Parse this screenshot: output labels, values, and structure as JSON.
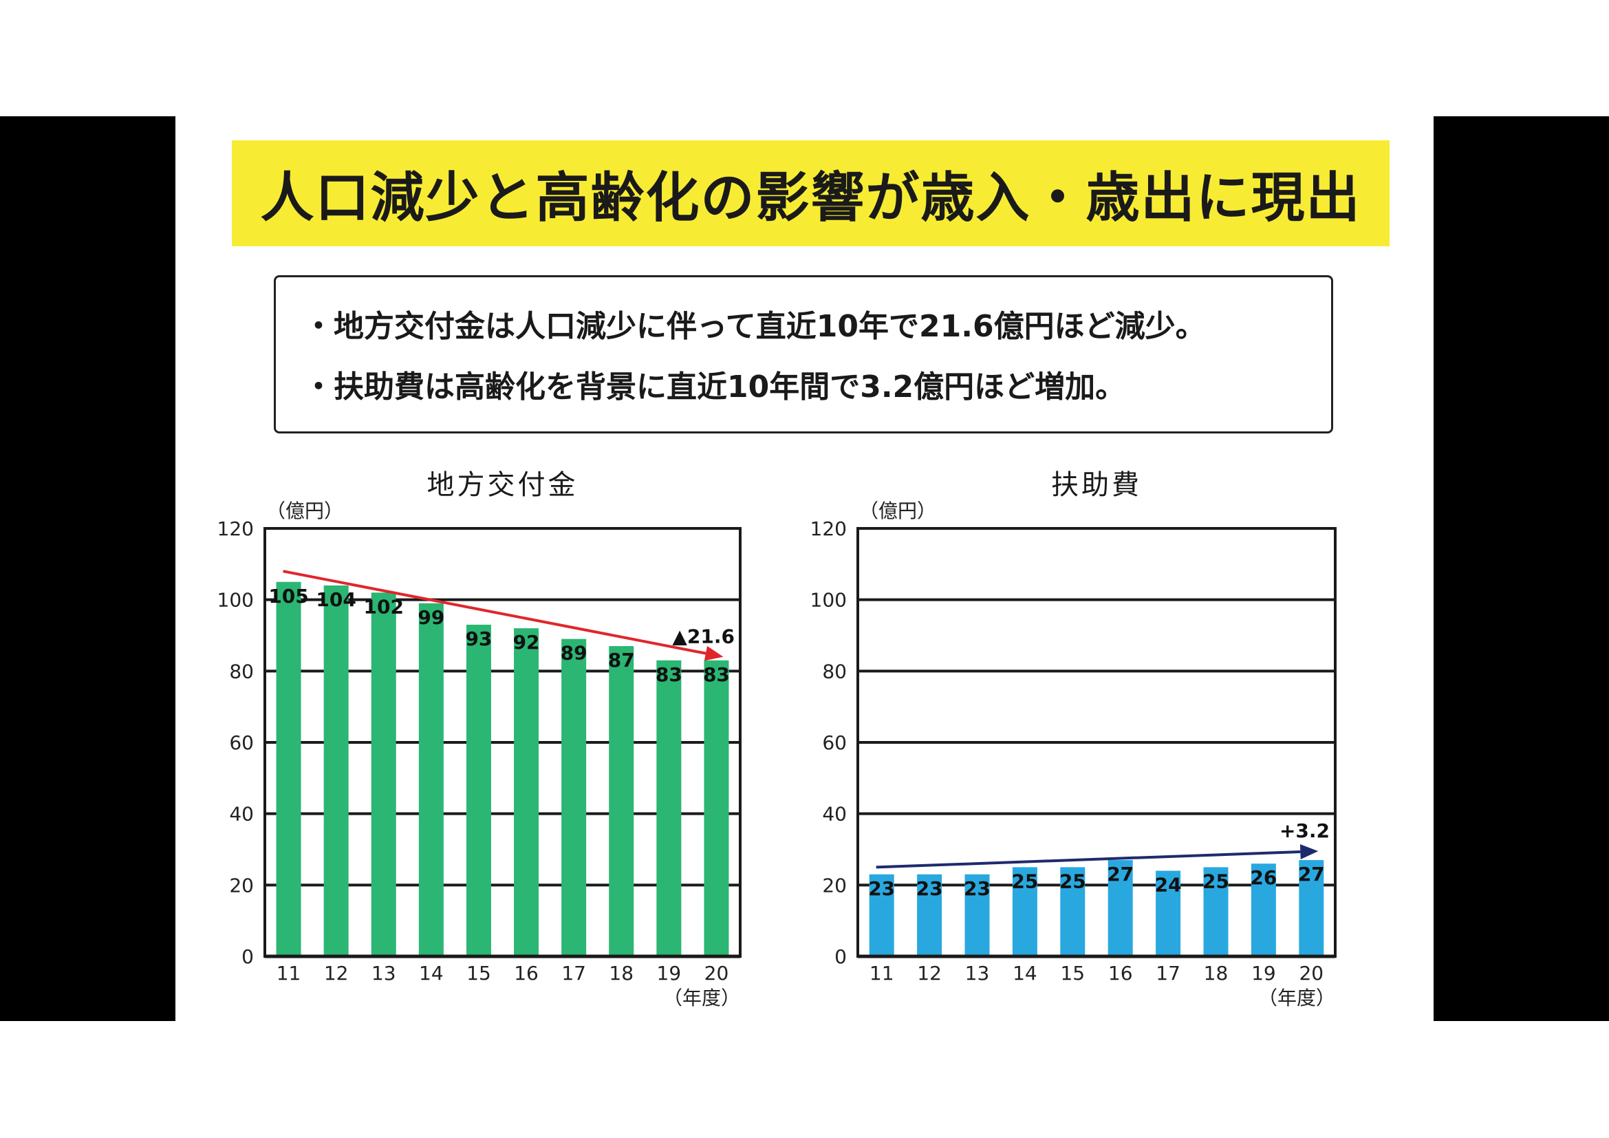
{
  "title": "人口減少と高齢化の影響が歳入・歳出に現出",
  "summary": [
    "・地方交付金は人口減少に伴って直近10年で21.6億円ほど減少。",
    "・扶助費は高齢化を背景に直近10年間で3.2億円ほど増加。"
  ],
  "chart_data": [
    {
      "type": "bar",
      "title": "地方交付金",
      "ylabel": "（億円）",
      "xlabel": "（年度）",
      "categories": [
        "11",
        "12",
        "13",
        "14",
        "15",
        "16",
        "17",
        "18",
        "19",
        "20"
      ],
      "values": [
        105,
        104,
        102,
        99,
        93,
        92,
        89,
        87,
        83,
        83
      ],
      "ylim": [
        0,
        120
      ],
      "yticks": [
        0,
        20,
        40,
        60,
        80,
        100,
        120
      ],
      "grid": true,
      "bar_color": "#2bb673",
      "trend": {
        "from": [
          "11",
          108
        ],
        "to": [
          "20",
          84
        ],
        "color": "#e0262b",
        "label": "▲21.6"
      }
    },
    {
      "type": "bar",
      "title": "扶助費",
      "ylabel": "（億円）",
      "xlabel": "（年度）",
      "categories": [
        "11",
        "12",
        "13",
        "14",
        "15",
        "16",
        "17",
        "18",
        "19",
        "20"
      ],
      "values": [
        23,
        23,
        23,
        25,
        25,
        27,
        24,
        25,
        26,
        27
      ],
      "ylim": [
        0,
        120
      ],
      "yticks": [
        0,
        20,
        40,
        60,
        80,
        100,
        120
      ],
      "grid": true,
      "bar_color": "#29a8e0",
      "trend": {
        "from": [
          "11",
          25
        ],
        "to": [
          "20",
          29.5
        ],
        "color": "#1f2a6e",
        "label": "+3.2"
      }
    }
  ]
}
